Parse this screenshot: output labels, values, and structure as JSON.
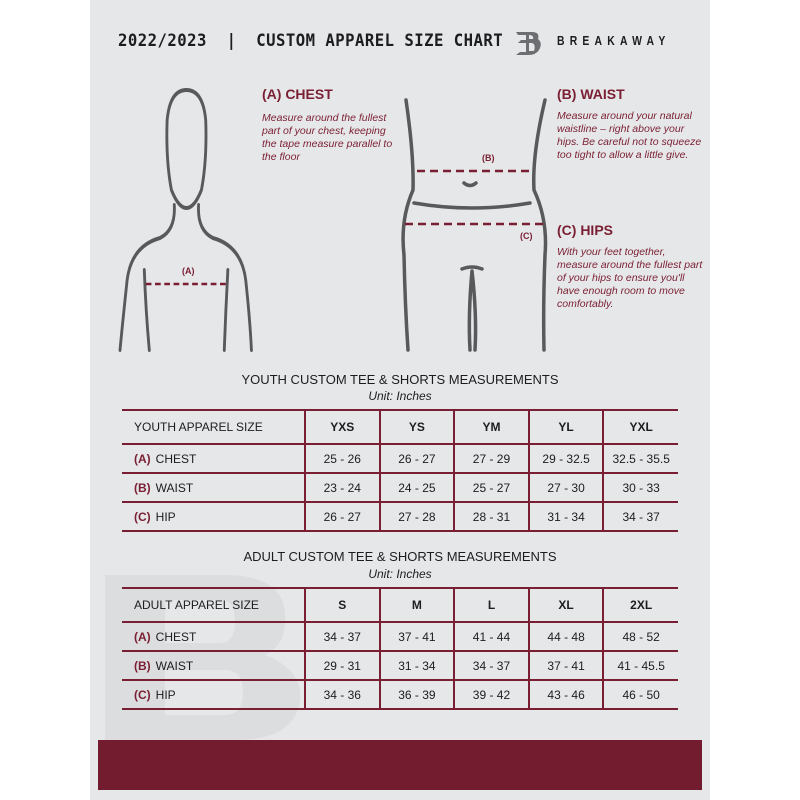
{
  "header": {
    "title": "2022/2023  |  CUSTOM APPAREL SIZE CHART",
    "brand": "BREAKAWAY",
    "logo_letter": "B"
  },
  "colors": {
    "accent": "#7a1f33",
    "background": "#e6e7e8",
    "footer": "#731c2f"
  },
  "guide": {
    "chest": {
      "heading": "(A) CHEST",
      "label": "(A)",
      "text": "Measure around the fullest part of your chest, keeping the tape measure parallel to the floor"
    },
    "waist": {
      "heading": "(B) WAIST",
      "label": "(B)",
      "text": "Measure around your natural waistline – right above your hips. Be careful not to squeeze too tight to allow a little give."
    },
    "hips": {
      "heading": "(C) HIPS",
      "label": "(C)",
      "text": "With your feet together, measure around the fullest part of your hips to ensure you'll have enough room to move comfortably."
    }
  },
  "youth": {
    "title": "YOUTH CUSTOM TEE & SHORTS MEASUREMENTS",
    "unit": "Unit: Inches",
    "size_label": "YOUTH APPAREL SIZE",
    "sizes": [
      "YXS",
      "YS",
      "YM",
      "YL",
      "YXL"
    ],
    "rows": [
      {
        "code": "(A)",
        "name": "CHEST",
        "values": [
          "25 - 26",
          "26 - 27",
          "27 - 29",
          "29 - 32.5",
          "32.5 - 35.5"
        ]
      },
      {
        "code": "(B)",
        "name": "WAIST",
        "values": [
          "23 - 24",
          "24 - 25",
          "25 - 27",
          "27 - 30",
          "30 - 33"
        ]
      },
      {
        "code": "(C)",
        "name": "HIP",
        "values": [
          "26 - 27",
          "27 - 28",
          "28 - 31",
          "31 - 34",
          "34 - 37"
        ]
      }
    ]
  },
  "adult": {
    "title": "ADULT CUSTOM TEE & SHORTS MEASUREMENTS",
    "unit": "Unit: Inches",
    "size_label": "ADULT APPAREL SIZE",
    "sizes": [
      "S",
      "M",
      "L",
      "XL",
      "2XL"
    ],
    "rows": [
      {
        "code": "(A)",
        "name": "CHEST",
        "values": [
          "34 - 37",
          "37 - 41",
          "41 - 44",
          "44 - 48",
          "48 - 52"
        ]
      },
      {
        "code": "(B)",
        "name": "WAIST",
        "values": [
          "29 - 31",
          "31 - 34",
          "34 - 37",
          "37 - 41",
          "41 - 45.5"
        ]
      },
      {
        "code": "(C)",
        "name": "HIP",
        "values": [
          "34 - 36",
          "36 - 39",
          "39 - 42",
          "43 - 46",
          "46 - 50"
        ]
      }
    ]
  }
}
